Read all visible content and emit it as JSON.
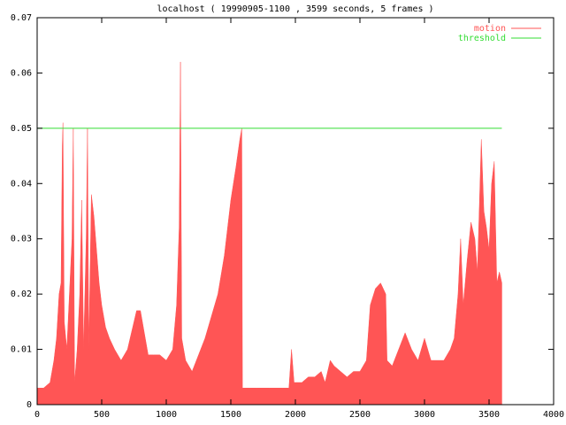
{
  "chart_data": {
    "type": "area",
    "title": "localhost ( 19990905-1100 , 3599 seconds, 5 frames )",
    "xlim": [
      0,
      4000
    ],
    "xticks": [
      0,
      500,
      1000,
      1500,
      2000,
      2500,
      3000,
      3500,
      4000
    ],
    "ylim": [
      0,
      0.07
    ],
    "yticks": [
      0,
      0.01,
      0.02,
      0.03,
      0.04,
      0.05,
      0.06,
      0.07
    ],
    "legend": "top-right",
    "series": [
      {
        "name": "motion",
        "color": "#ff5555",
        "style": "area",
        "x": [
          0,
          50,
          100,
          130,
          150,
          170,
          185,
          195,
          200,
          210,
          230,
          250,
          270,
          280,
          290,
          310,
          330,
          345,
          360,
          380,
          390,
          400,
          420,
          440,
          460,
          480,
          500,
          530,
          560,
          600,
          650,
          700,
          740,
          770,
          800,
          830,
          860,
          900,
          950,
          1000,
          1050,
          1080,
          1100,
          1110,
          1120,
          1150,
          1200,
          1250,
          1300,
          1350,
          1400,
          1450,
          1500,
          1540,
          1570,
          1585,
          1590,
          1650,
          1700,
          1800,
          1900,
          1950,
          1970,
          1990,
          2050,
          2100,
          2150,
          2200,
          2230,
          2270,
          2300,
          2350,
          2400,
          2450,
          2500,
          2550,
          2580,
          2620,
          2660,
          2700,
          2710,
          2750,
          2800,
          2850,
          2900,
          2950,
          3000,
          3050,
          3100,
          3150,
          3200,
          3230,
          3260,
          3280,
          3300,
          3330,
          3360,
          3390,
          3410,
          3440,
          3460,
          3480,
          3500,
          3520,
          3540,
          3560,
          3580,
          3599
        ],
        "values": [
          0.003,
          0.003,
          0.004,
          0.008,
          0.012,
          0.02,
          0.022,
          0.047,
          0.051,
          0.015,
          0.01,
          0.02,
          0.03,
          0.05,
          0.004,
          0.01,
          0.02,
          0.037,
          0.01,
          0.03,
          0.05,
          0.01,
          0.038,
          0.034,
          0.028,
          0.022,
          0.018,
          0.014,
          0.012,
          0.01,
          0.008,
          0.01,
          0.014,
          0.017,
          0.017,
          0.013,
          0.009,
          0.009,
          0.009,
          0.008,
          0.01,
          0.018,
          0.032,
          0.062,
          0.012,
          0.008,
          0.006,
          0.009,
          0.012,
          0.016,
          0.02,
          0.027,
          0.037,
          0.043,
          0.048,
          0.05,
          0.003,
          0.003,
          0.003,
          0.003,
          0.003,
          0.003,
          0.01,
          0.004,
          0.004,
          0.005,
          0.005,
          0.006,
          0.004,
          0.008,
          0.007,
          0.006,
          0.005,
          0.006,
          0.006,
          0.008,
          0.018,
          0.021,
          0.022,
          0.02,
          0.008,
          0.007,
          0.01,
          0.013,
          0.01,
          0.008,
          0.012,
          0.008,
          0.008,
          0.008,
          0.01,
          0.012,
          0.02,
          0.03,
          0.018,
          0.026,
          0.033,
          0.03,
          0.024,
          0.048,
          0.035,
          0.032,
          0.028,
          0.04,
          0.044,
          0.022,
          0.024,
          0.022
        ]
      },
      {
        "name": "threshold",
        "color": "#33dd33",
        "style": "line",
        "x": [
          0,
          3599
        ],
        "values": [
          0.05,
          0.05
        ]
      }
    ]
  }
}
